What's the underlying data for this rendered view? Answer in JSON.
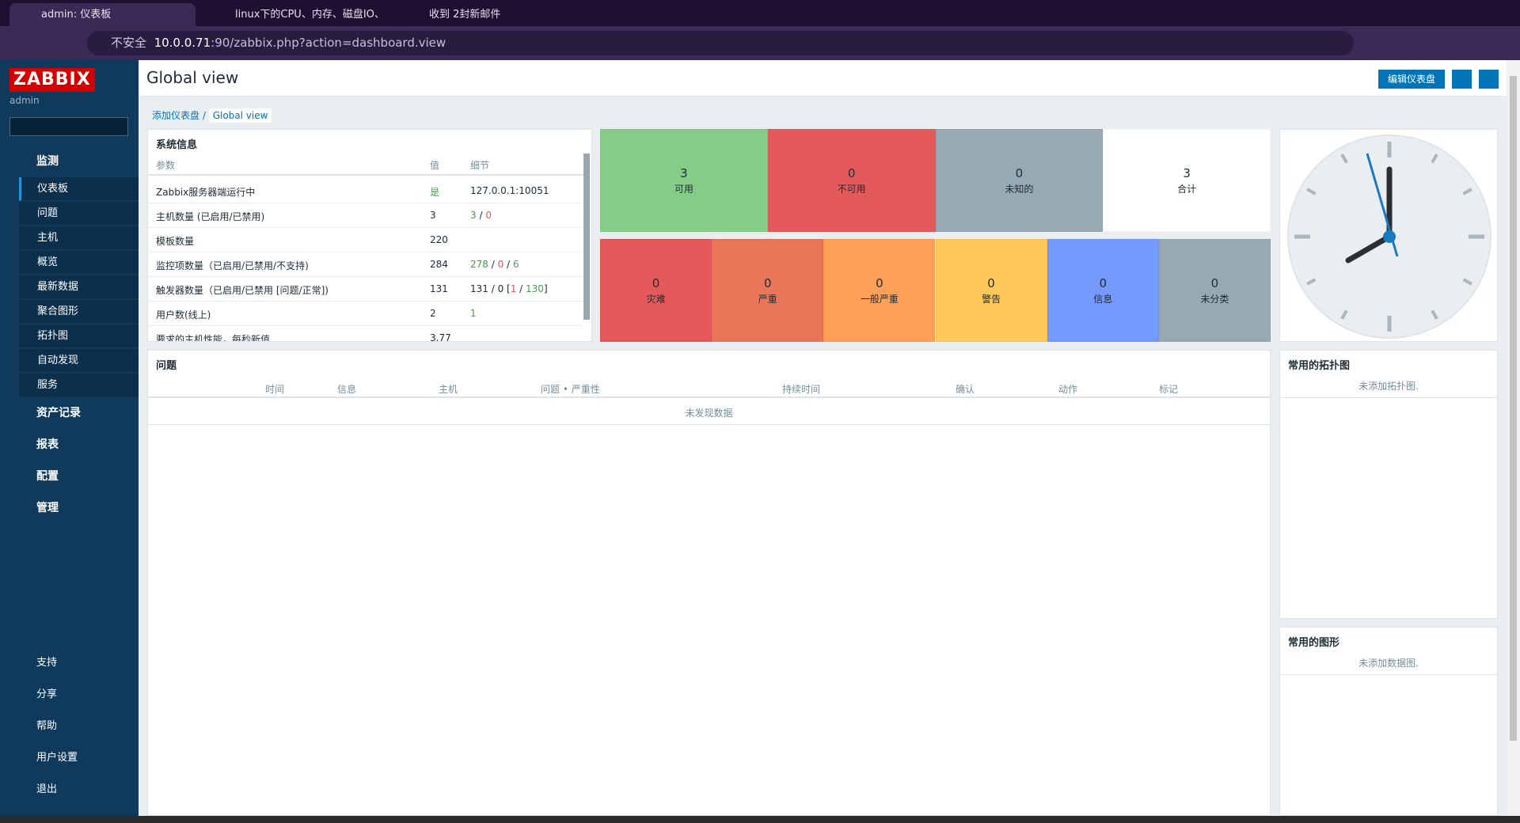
{
  "browser": {
    "tabs": [
      "admin: 仪表板",
      "linux下的CPU、内存、磁盘IO、",
      "收到 2封新邮件"
    ],
    "security": "不安全",
    "url_host": "10.0.0.71",
    "url_rest": ":90/zabbix.php?action=dashboard.view"
  },
  "sidebar": {
    "logo": "ZABBIX",
    "user": "admin",
    "menu": [
      {
        "label": "监测",
        "items": [
          "仪表板",
          "问题",
          "主机",
          "概览",
          "最新数据",
          "聚合图形",
          "拓扑图",
          "自动发现",
          "服务"
        ]
      },
      {
        "label": "资产记录"
      },
      {
        "label": "报表"
      },
      {
        "label": "配置"
      },
      {
        "label": "管理"
      }
    ],
    "footer": [
      "支持",
      "分享",
      "帮助",
      "用户设置",
      "退出"
    ]
  },
  "header": {
    "title": "Global view",
    "edit_button": "编辑仪表盘"
  },
  "breadcrumb": [
    "添加仪表盘",
    "Global view"
  ],
  "system_info": {
    "title": "系统信息",
    "columns": [
      "参数",
      "值",
      "细节"
    ],
    "rows": [
      {
        "param": "Zabbix服务器端运行中",
        "value": "是",
        "value_tone": "ok",
        "details": [
          {
            "t": "127.0.0.1:10051"
          }
        ]
      },
      {
        "param": "主机数量 (已启用/已禁用)",
        "value": 3,
        "details": [
          {
            "t": "3",
            "c": "ok"
          },
          {
            "t": " / "
          },
          {
            "t": "0",
            "c": "bad"
          }
        ]
      },
      {
        "param": "模板数量",
        "value": 220,
        "details": []
      },
      {
        "param": "监控项数量（已启用/已禁用/不支持)",
        "value": 284,
        "details": [
          {
            "t": "278",
            "c": "ok"
          },
          {
            "t": " / "
          },
          {
            "t": "0",
            "c": "bad"
          },
          {
            "t": " / "
          },
          {
            "t": "6",
            "c": "mut"
          }
        ]
      },
      {
        "param": "触发器数量（已启用/已禁用 [问题/正常])",
        "value": 131,
        "details": [
          {
            "t": "131 / 0 ["
          },
          {
            "t": "1",
            "c": "bad"
          },
          {
            "t": " / "
          },
          {
            "t": "130",
            "c": "ok"
          },
          {
            "t": "]"
          }
        ]
      },
      {
        "param": "用户数(线上)",
        "value": 2,
        "details": [
          {
            "t": "1",
            "c": "ok"
          }
        ]
      },
      {
        "param": "要求的主机性能，每秒新值",
        "value": 3.77,
        "details": []
      }
    ]
  },
  "host_availability": [
    {
      "value": 3,
      "label": "可用",
      "color": "#86cc89"
    },
    {
      "value": 0,
      "label": "不可用",
      "color": "#e45959"
    },
    {
      "value": 0,
      "label": "未知的",
      "color": "#97aab3"
    },
    {
      "value": 3,
      "label": "合计",
      "color": "#ffffff"
    }
  ],
  "problems_by_severity": [
    {
      "value": 0,
      "label": "灾难",
      "color": "#e45959"
    },
    {
      "value": 0,
      "label": "严重",
      "color": "#e97659"
    },
    {
      "value": 0,
      "label": "一般严重",
      "color": "#ffa059"
    },
    {
      "value": 0,
      "label": "警告",
      "color": "#ffc859"
    },
    {
      "value": 0,
      "label": "信息",
      "color": "#7499ff"
    },
    {
      "value": 0,
      "label": "未分类",
      "color": "#97aab3"
    }
  ],
  "problems": {
    "title": "问题",
    "columns": [
      "时间",
      "信息",
      "主机",
      "问题 • 严重性",
      "持续时间",
      "确认",
      "动作",
      "标记"
    ],
    "empty": "未发现数据"
  },
  "favorite_maps": {
    "title": "常用的拓扑图",
    "empty": "未添加拓扑图."
  },
  "favorite_graphs": {
    "title": "常用的图形",
    "empty": "未添加数据图."
  }
}
